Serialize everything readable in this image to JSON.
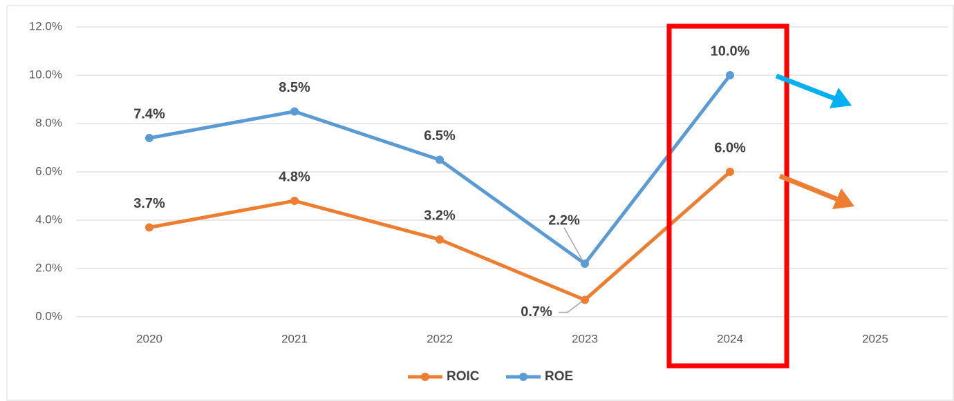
{
  "chart_data": {
    "type": "line",
    "categories": [
      "2020",
      "2021",
      "2022",
      "2023",
      "2024",
      "2025"
    ],
    "series": [
      {
        "name": "ROIC",
        "color": "#ed7d31",
        "values": [
          3.7,
          4.8,
          3.2,
          0.7,
          6.0,
          null
        ],
        "value_labels": [
          "3.7%",
          "4.8%",
          "3.2%",
          "0.7%",
          "6.0%",
          null
        ]
      },
      {
        "name": "ROE",
        "color": "#5b9bd5",
        "values": [
          7.4,
          8.5,
          6.5,
          2.2,
          10.0,
          null
        ],
        "value_labels": [
          "7.4%",
          "8.5%",
          "6.5%",
          "2.2%",
          "10.0%",
          null
        ]
      }
    ],
    "ylim": [
      0,
      12
    ],
    "yticks": [
      {
        "value": 0,
        "label": "0.0%"
      },
      {
        "value": 2,
        "label": "2.0%"
      },
      {
        "value": 4,
        "label": "4.0%"
      },
      {
        "value": 6,
        "label": "6.0%"
      },
      {
        "value": 8,
        "label": "8.0%"
      },
      {
        "value": 10,
        "label": "10.0%"
      },
      {
        "value": 12,
        "label": "12.0%"
      }
    ],
    "grid": true,
    "legend": "bottom"
  }
}
